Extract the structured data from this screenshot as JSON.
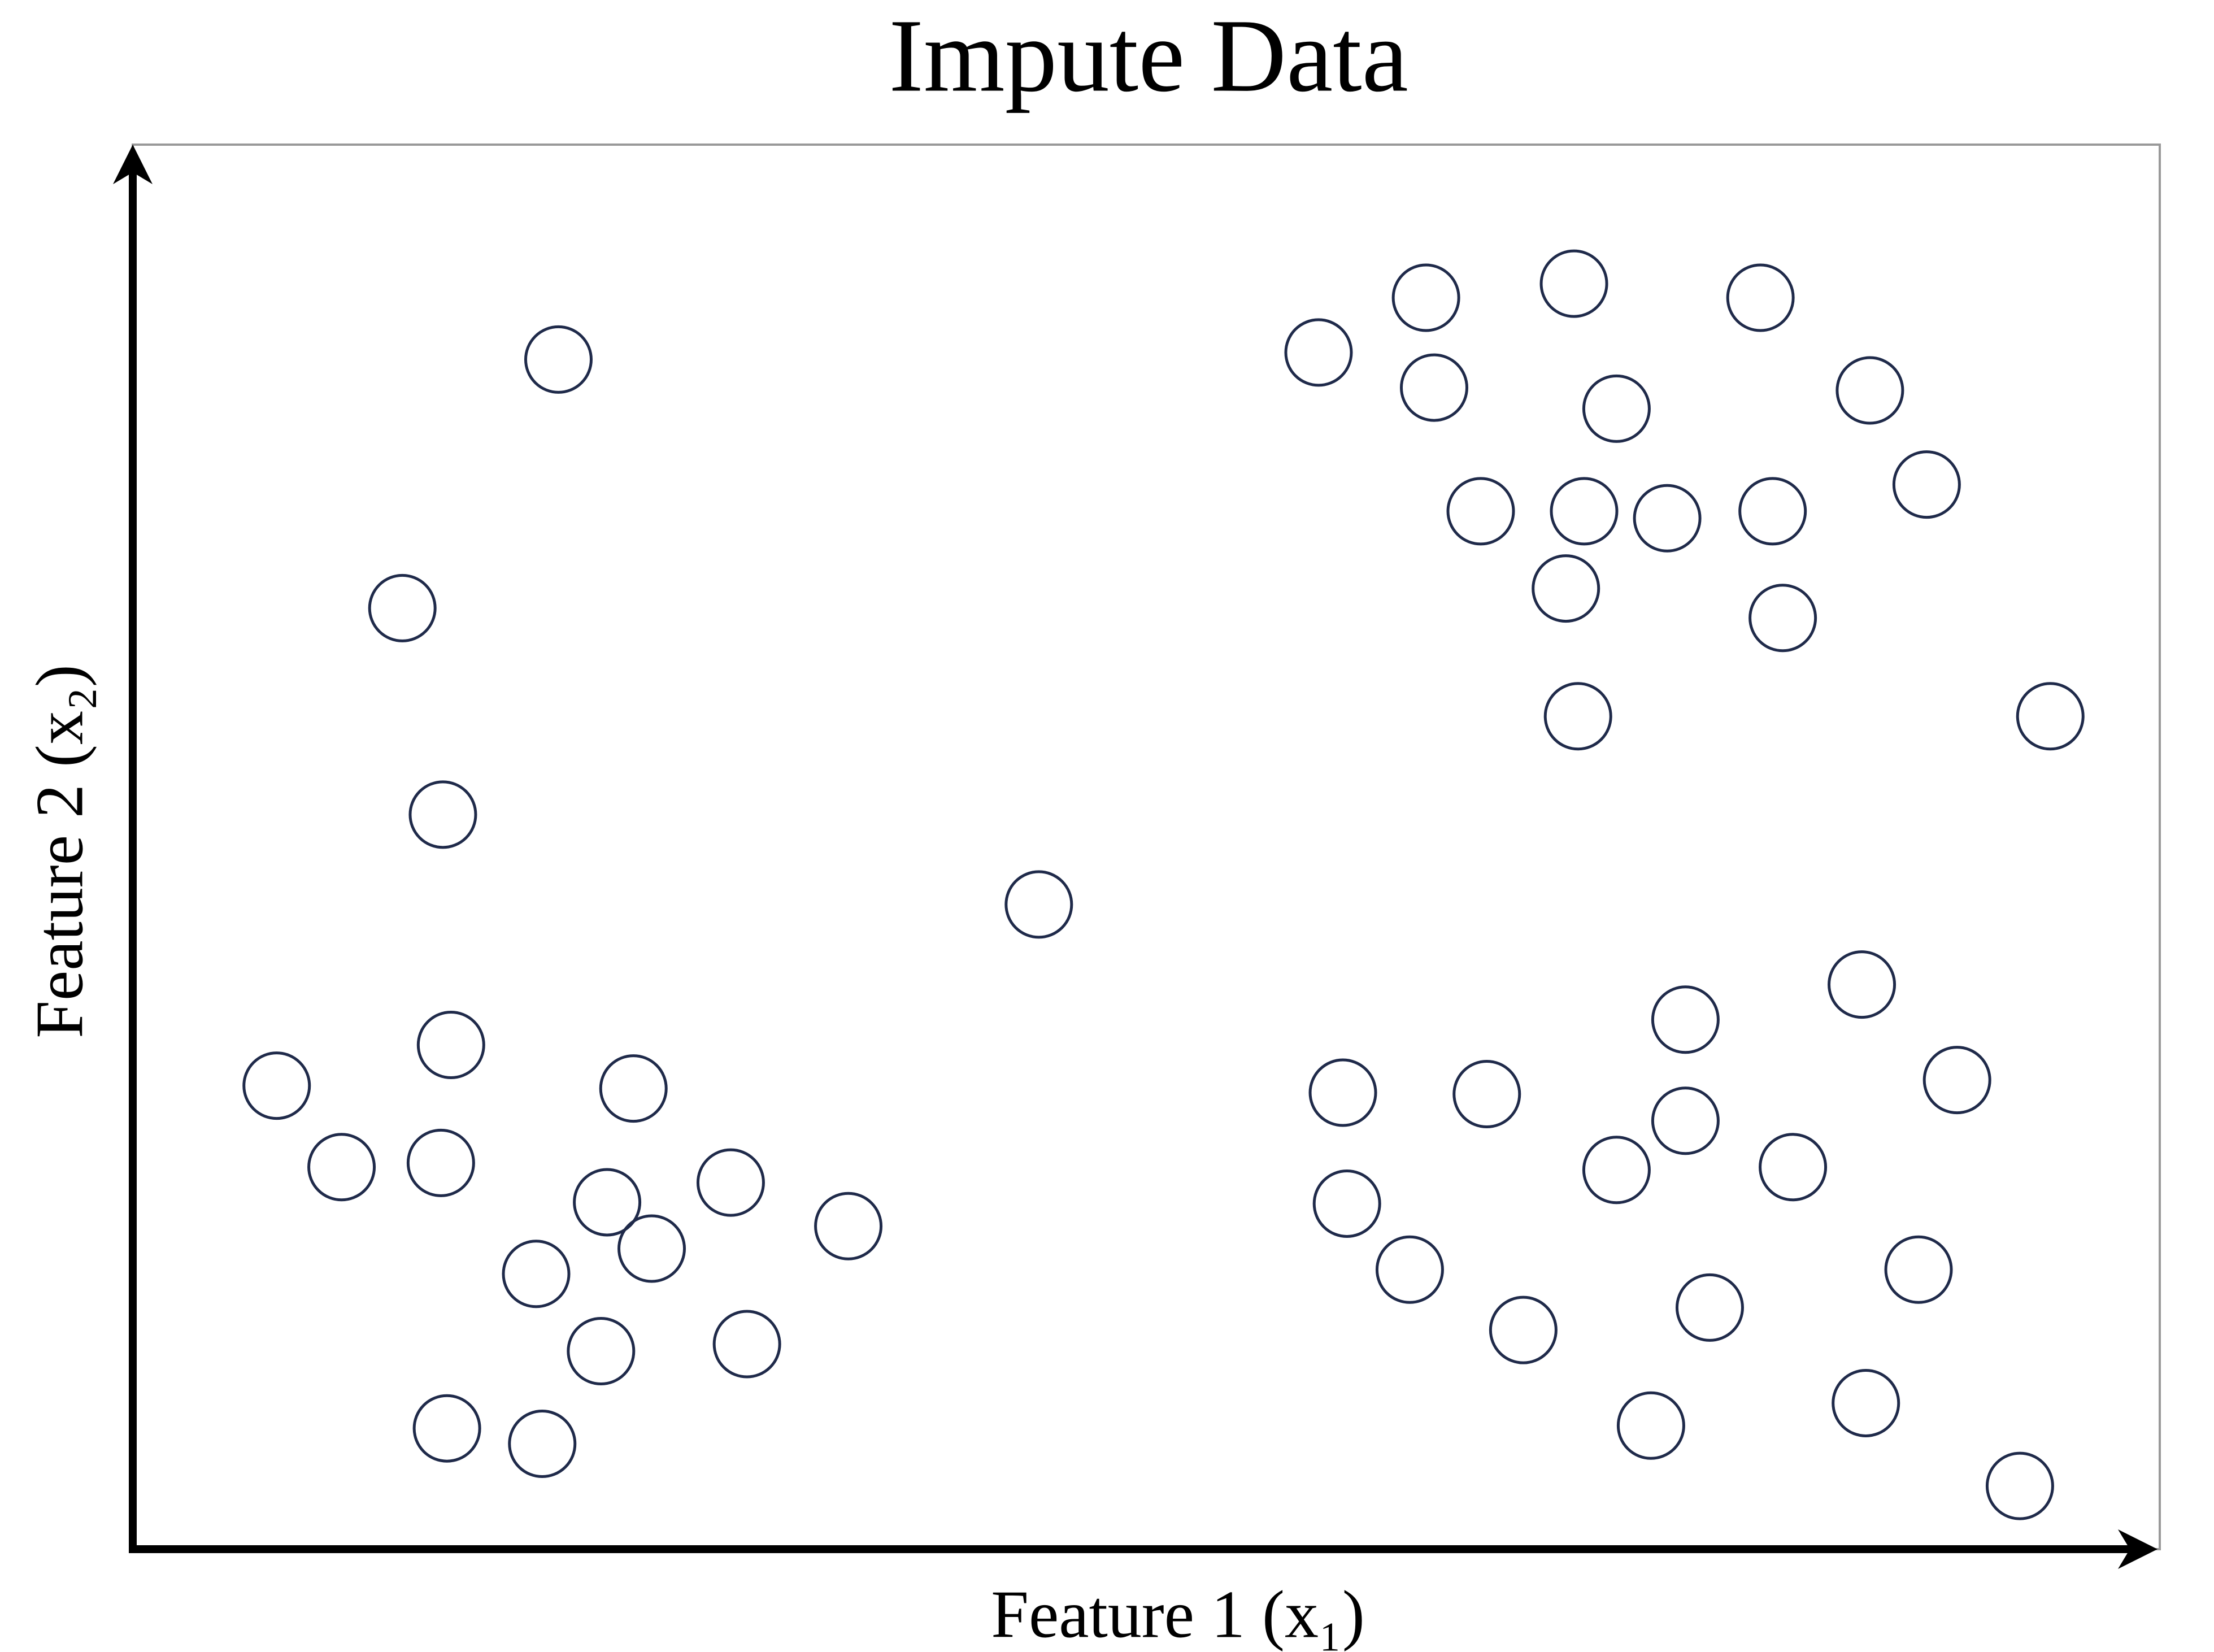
{
  "chart_data": {
    "type": "scatter",
    "title": "Impute Data",
    "xlabel": "Feature 1 (x₁)",
    "ylabel": "Feature 2 (x₂)",
    "series": [
      {
        "color": "#1f2a4a",
        "x": [
          21.0,
          13.3,
          15.3,
          44.7,
          15.7,
          7.1,
          24.7,
          10.3,
          15.2,
          23.4,
          29.5,
          25.6,
          35.3,
          19.9,
          23.1,
          30.3,
          15.5,
          20.2,
          58.5,
          63.8,
          71.1,
          80.3,
          64.2,
          73.2,
          85.7,
          88.5,
          66.5,
          71.6,
          75.7,
          80.9,
          70.7,
          81.4,
          71.3,
          94.6,
          85.3,
          76.6,
          90.0,
          59.7,
          66.8,
          76.6,
          73.2,
          81.9,
          59.9,
          63.0,
          88.1,
          77.8,
          68.6,
          74.9,
          85.5,
          93.1
        ],
        "values": [
          84.7,
          67.0,
          52.3,
          45.9,
          35.9,
          33.0,
          32.8,
          27.2,
          27.5,
          24.7,
          26.1,
          21.4,
          23.0,
          19.6,
          14.1,
          14.6,
          8.6,
          7.5,
          85.2,
          89.1,
          90.1,
          89.1,
          82.7,
          81.2,
          82.5,
          75.8,
          73.9,
          73.9,
          73.4,
          73.9,
          68.4,
          66.3,
          59.3,
          59.3,
          40.2,
          37.7,
          33.4,
          32.5,
          32.4,
          30.5,
          27.0,
          27.2,
          24.6,
          19.9,
          19.9,
          17.2,
          15.6,
          8.8,
          10.4,
          4.5
        ]
      }
    ],
    "xlim": [
      0,
      100
    ],
    "ylim": [
      0,
      100
    ],
    "grid": false
  }
}
